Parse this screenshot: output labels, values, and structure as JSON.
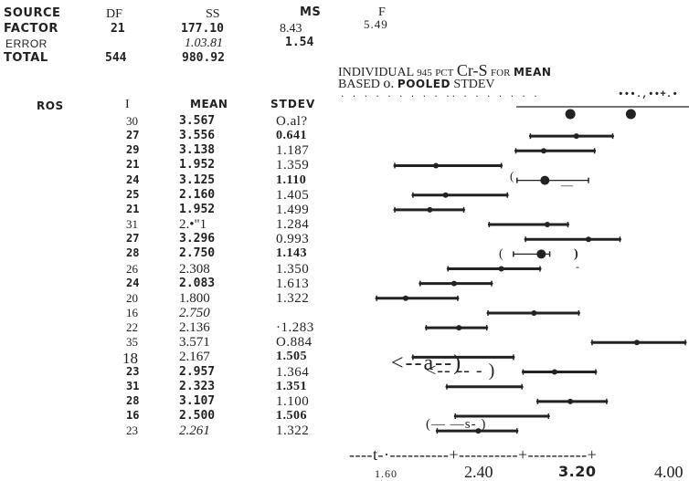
{
  "anova": {
    "header": {
      "source": "SOURCE",
      "df": "DF",
      "ss": "SS",
      "ms": "MS",
      "f": "F"
    },
    "rows": [
      {
        "source": "FACTOR",
        "df": "21",
        "ss": "177.10",
        "ms": "8.43",
        "f": "5.49"
      },
      {
        "source": "ERROR",
        "df": "",
        "ss": "1.03.81",
        "ms": "1.54",
        "f": ""
      },
      {
        "source": "TOTAL",
        "df": "544",
        "ss": "980.92",
        "ms": "",
        "f": ""
      }
    ]
  },
  "ci_header": {
    "line1_a": "INDIVIDUAL",
    "line1_b": "945",
    "line1_c": "PCT",
    "line1_d": "Cr-S",
    "line1_e": "FOR",
    "line1_f": "MEAN",
    "line2_a": "BASED",
    "line2_b": "o.",
    "line2_c": "POOLED",
    "line2_d": "STDEV"
  },
  "table": {
    "col_level": "ROS",
    "col_n": "I",
    "col_mean": "MEAN",
    "col_stdev": "STDEV",
    "rows": [
      {
        "n": "30",
        "mean": "3.567",
        "stdev": "O.al?"
      },
      {
        "n": "27",
        "mean": "3.556",
        "stdev": "0.641"
      },
      {
        "n": "29",
        "mean": "3.138",
        "stdev": "1.187"
      },
      {
        "n": "21",
        "mean": "1.952",
        "stdev": "1.359"
      },
      {
        "n": "24",
        "mean": "3.125",
        "stdev": "1.110"
      },
      {
        "n": "25",
        "mean": "2.160",
        "stdev": "1.405"
      },
      {
        "n": "21",
        "mean": "1.952",
        "stdev": "1.499"
      },
      {
        "n": "31",
        "mean": "2.•\"1",
        "stdev": "1.284"
      },
      {
        "n": "27",
        "mean": "3.296",
        "stdev": "0.993"
      },
      {
        "n": "28",
        "mean": "2.750",
        "stdev": "1.143"
      },
      {
        "n": "26",
        "mean": "2.308",
        "stdev": "1.350"
      },
      {
        "n": "24",
        "mean": "2.083",
        "stdev": "1.613"
      },
      {
        "n": "20",
        "mean": "1.800",
        "stdev": "1.322"
      },
      {
        "n": "16",
        "mean": "2.750",
        "stdev": ""
      },
      {
        "n": "22",
        "mean": "2.136",
        "stdev": "·1.283"
      },
      {
        "n": "35",
        "mean": "3.571",
        "stdev": "O.884"
      },
      {
        "n": "18",
        "mean": "2.167",
        "stdev": "1.505"
      },
      {
        "n": "23",
        "mean": "2.957",
        "stdev": "1.364"
      },
      {
        "n": "31",
        "mean": "2.323",
        "stdev": "1.351"
      },
      {
        "n": "28",
        "mean": "3.107",
        "stdev": "1.100"
      },
      {
        "n": "16",
        "mean": "2.500",
        "stdev": "1.506"
      },
      {
        "n": "23",
        "mean": "2.261",
        "stdev": "1.322"
      }
    ]
  },
  "scan_garble": {
    "row0": "· · · · · · ·  · ·  ·· ·  · · · ·  · ·",
    "row0_right": "•••.,••+.•",
    "row6_left": "(",
    "row6_right": "—",
    "row9_a": "(",
    "row9_b": ")",
    "row9_c": "-",
    "row16": "<--a--)",
    "row18": "<-- --  - )",
    "row20": "(— —s-      )"
  },
  "axis": {
    "labels": [
      "1.60",
      "2.40",
      "3.20",
      "4.00"
    ],
    "ticks": [
      2.4,
      3.2,
      4.0
    ],
    "dashline": "----t-·----------+----------+----------+"
  },
  "ci_intervals": [
    {
      "center": 3.17,
      "low": 2.72,
      "high": 3.9,
      "marker": "dot"
    },
    {
      "center": 3.1,
      "low": 2.72,
      "high": 3.4,
      "marker": "x"
    },
    {
      "center": 2.83,
      "low": 2.6,
      "high": 3.25,
      "marker": "x"
    },
    {
      "center": 1.94,
      "low": 1.6,
      "high": 2.48,
      "marker": "x"
    },
    {
      "center": 2.84,
      "low": 2.61,
      "high": 3.2,
      "marker": "dot"
    },
    {
      "center": 2.02,
      "low": 1.75,
      "high": 2.53,
      "marker": "x"
    },
    {
      "center": 1.89,
      "low": 1.6,
      "high": 2.17,
      "marker": "x"
    },
    {
      "center": 2.86,
      "low": 2.38,
      "high": 3.03,
      "marker": "x"
    },
    {
      "center": 3.2,
      "low": 2.68,
      "high": 3.46,
      "marker": "x"
    },
    {
      "center": 2.81,
      "low": 2.58,
      "high": 2.88,
      "marker": "dot"
    },
    {
      "center": 2.48,
      "low": 2.04,
      "high": 2.8,
      "marker": "x"
    },
    {
      "center": 2.09,
      "low": 1.81,
      "high": 2.4,
      "marker": "x"
    },
    {
      "center": 1.69,
      "low": 1.45,
      "high": 2.12,
      "marker": "x"
    },
    {
      "center": 2.75,
      "low": 2.37,
      "high": 3.12,
      "marker": "x"
    },
    {
      "center": 2.13,
      "low": 1.86,
      "high": 2.36,
      "marker": "x"
    },
    {
      "center": 3.6,
      "low": 3.23,
      "high": 4.0,
      "marker": "x"
    },
    {
      "center": 2.17,
      "low": 1.75,
      "high": 2.58,
      "marker": "none"
    },
    {
      "center": 2.92,
      "low": 2.66,
      "high": 3.26,
      "marker": "x"
    },
    {
      "center": 2.32,
      "low": 2.03,
      "high": 2.65,
      "marker": "none"
    },
    {
      "center": 3.05,
      "low": 2.78,
      "high": 3.35,
      "marker": "x"
    },
    {
      "center": 2.47,
      "low": 2.1,
      "high": 2.87,
      "marker": "none"
    },
    {
      "center": 2.29,
      "low": 1.95,
      "high": 2.61,
      "marker": "x"
    }
  ],
  "colors": {
    "ink": "#222222",
    "paper": "#ffffff"
  }
}
